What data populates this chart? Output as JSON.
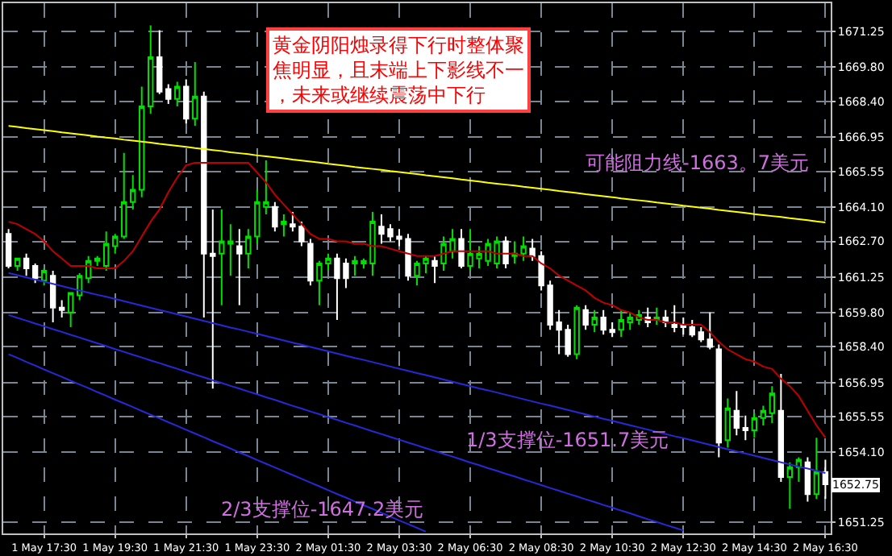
{
  "chart_data": {
    "type": "candlestick",
    "categories": [
      null,
      null,
      null,
      null,
      "1 May 17:30",
      null,
      null,
      null,
      null,
      null,
      null,
      null,
      "1 May 19:30",
      null,
      null,
      null,
      null,
      null,
      null,
      null,
      "1 May 21:30",
      null,
      null,
      null,
      null,
      null,
      null,
      null,
      "1 May 23:30",
      null,
      null,
      null,
      null,
      null,
      null,
      null,
      "2 May 01:30",
      null,
      null,
      null,
      null,
      null,
      null,
      null,
      "2 May 03:30",
      null,
      null,
      null,
      null,
      null,
      null,
      null,
      "2 May 06:30",
      null,
      null,
      null,
      null,
      null,
      null,
      null,
      "2 May 08:30",
      null,
      null,
      null,
      null,
      null,
      null,
      null,
      "2 May 10:30",
      null,
      null,
      null,
      null,
      null,
      null,
      null,
      "2 May 12:30",
      null,
      null,
      null,
      null,
      null,
      null,
      null,
      "2 May 14:30",
      null,
      null,
      null,
      null,
      null,
      null,
      null,
      "2 May 16:30"
    ],
    "ohlc": [
      [
        1663.0,
        1663.2,
        1661.6,
        1661.7
      ],
      [
        1661.7,
        1662.0,
        1661.5,
        1662.0
      ],
      [
        1662.0,
        1662.2,
        1661.3,
        1661.6
      ],
      [
        1661.7,
        1661.8,
        1661.0,
        1661.2
      ],
      [
        1661.1,
        1661.6,
        1660.9,
        1661.5
      ],
      [
        1661.3,
        1661.5,
        1659.4,
        1660.0
      ],
      [
        1660.0,
        1660.3,
        1659.6,
        1659.9
      ],
      [
        1659.8,
        1660.6,
        1659.2,
        1660.6
      ],
      [
        1660.5,
        1661.4,
        1660.3,
        1661.3
      ],
      [
        1661.2,
        1662.1,
        1661.0,
        1661.9
      ],
      [
        1661.9,
        1662.1,
        1661.7,
        1662.0
      ],
      [
        1661.7,
        1663.1,
        1661.5,
        1662.6
      ],
      [
        1662.5,
        1663.0,
        1662.2,
        1662.9
      ],
      [
        1662.9,
        1666.3,
        1662.8,
        1664.3
      ],
      [
        1664.3,
        1665.4,
        1664.0,
        1664.8
      ],
      [
        1664.8,
        1669.0,
        1664.5,
        1668.2
      ],
      [
        1668.2,
        1671.5,
        1667.9,
        1670.2
      ],
      [
        1670.2,
        1671.3,
        1668.7,
        1668.8
      ],
      [
        1668.9,
        1669.1,
        1668.3,
        1668.5
      ],
      [
        1668.5,
        1669.2,
        1668.2,
        1669.0
      ],
      [
        1669.0,
        1669.3,
        1667.5,
        1667.7
      ],
      [
        1667.7,
        1670.0,
        1667.4,
        1668.6
      ],
      [
        1668.6,
        1668.8,
        1659.6,
        1662.2
      ],
      [
        1662.2,
        1664.0,
        1656.7,
        1662.1
      ],
      [
        1662.2,
        1664.0,
        1660.1,
        1662.7
      ],
      [
        1662.6,
        1663.4,
        1661.3,
        1662.7
      ],
      [
        1662.5,
        1663.2,
        1660.1,
        1662.2
      ],
      [
        1662.2,
        1663.2,
        1661.6,
        1662.9
      ],
      [
        1662.9,
        1664.8,
        1662.6,
        1664.3
      ],
      [
        1664.1,
        1666.0,
        1663.8,
        1664.3
      ],
      [
        1664.1,
        1664.3,
        1663.1,
        1663.3
      ],
      [
        1663.4,
        1663.8,
        1662.9,
        1663.5
      ],
      [
        1663.4,
        1663.9,
        1663.1,
        1663.3
      ],
      [
        1663.3,
        1663.5,
        1662.5,
        1662.7
      ],
      [
        1662.6,
        1662.8,
        1660.9,
        1661.1
      ],
      [
        1661.1,
        1661.9,
        1660.1,
        1661.8
      ],
      [
        1661.8,
        1662.2,
        1661.5,
        1662.0
      ],
      [
        1662.0,
        1662.2,
        1659.5,
        1661.2
      ],
      [
        1661.8,
        1662.0,
        1660.8,
        1661.2
      ],
      [
        1661.8,
        1662.1,
        1661.3,
        1661.9
      ],
      [
        1661.8,
        1662.0,
        1661.6,
        1661.9
      ],
      [
        1661.8,
        1663.9,
        1661.3,
        1663.5
      ],
      [
        1663.3,
        1663.8,
        1662.6,
        1663.0
      ],
      [
        1663.2,
        1663.4,
        1662.7,
        1662.9
      ],
      [
        1662.9,
        1663.2,
        1662.5,
        1662.8
      ],
      [
        1662.8,
        1663.0,
        1661.1,
        1661.3
      ],
      [
        1661.3,
        1661.9,
        1660.9,
        1661.8
      ],
      [
        1661.8,
        1662.1,
        1661.4,
        1662.0
      ],
      [
        1661.9,
        1662.1,
        1661.0,
        1661.7
      ],
      [
        1661.8,
        1662.9,
        1661.5,
        1662.6
      ],
      [
        1662.3,
        1663.2,
        1662.0,
        1662.8
      ],
      [
        1662.8,
        1663.2,
        1661.6,
        1661.7
      ],
      [
        1661.7,
        1663.2,
        1661.5,
        1662.2
      ],
      [
        1662.0,
        1662.5,
        1661.6,
        1662.2
      ],
      [
        1661.9,
        1662.8,
        1661.7,
        1662.6
      ],
      [
        1661.8,
        1662.9,
        1661.6,
        1662.7
      ],
      [
        1662.7,
        1662.9,
        1661.6,
        1661.8
      ],
      [
        1662.1,
        1662.7,
        1661.8,
        1662.2
      ],
      [
        1662.2,
        1662.9,
        1661.9,
        1662.5
      ],
      [
        1662.4,
        1662.8,
        1661.9,
        1662.1
      ],
      [
        1662.1,
        1662.3,
        1660.7,
        1660.9
      ],
      [
        1660.9,
        1661.1,
        1659.1,
        1659.3
      ],
      [
        1659.4,
        1659.9,
        1658.1,
        1659.1
      ],
      [
        1659.1,
        1659.3,
        1658.0,
        1658.1
      ],
      [
        1658.1,
        1660.1,
        1657.9,
        1660.0
      ],
      [
        1659.9,
        1660.1,
        1659.1,
        1659.3
      ],
      [
        1659.3,
        1659.9,
        1659.0,
        1659.6
      ],
      [
        1659.6,
        1659.9,
        1658.9,
        1659.1
      ],
      [
        1659.1,
        1659.4,
        1658.8,
        1659.0
      ],
      [
        1659.1,
        1659.9,
        1658.8,
        1659.5
      ],
      [
        1659.4,
        1659.8,
        1659.1,
        1659.6
      ],
      [
        1659.5,
        1659.9,
        1659.3,
        1659.7
      ],
      [
        1659.6,
        1660.0,
        1659.2,
        1659.4
      ],
      [
        1659.5,
        1660.0,
        1659.3,
        1659.6
      ],
      [
        1659.6,
        1659.9,
        1659.2,
        1659.4
      ],
      [
        1659.3,
        1660.1,
        1659.0,
        1659.2
      ],
      [
        1659.3,
        1659.6,
        1658.9,
        1659.2
      ],
      [
        1659.2,
        1659.5,
        1658.8,
        1658.9
      ],
      [
        1659.0,
        1659.2,
        1658.6,
        1658.7
      ],
      [
        1658.7,
        1659.8,
        1658.3,
        1658.4
      ],
      [
        1658.3,
        1658.5,
        1653.9,
        1654.5
      ],
      [
        1654.6,
        1656.3,
        1654.3,
        1655.9
      ],
      [
        1655.8,
        1656.6,
        1654.8,
        1655.1
      ],
      [
        1655.1,
        1655.6,
        1654.6,
        1655.0
      ],
      [
        1655.0,
        1655.7,
        1654.7,
        1655.5
      ],
      [
        1655.5,
        1656.0,
        1655.2,
        1655.8
      ],
      [
        1655.7,
        1656.8,
        1655.3,
        1656.5
      ],
      [
        1655.8,
        1657.3,
        1652.9,
        1653.1
      ],
      [
        1653.1,
        1653.7,
        1651.8,
        1653.5
      ],
      [
        1653.5,
        1653.9,
        1652.9,
        1653.8
      ],
      [
        1653.7,
        1653.9,
        1652.1,
        1652.4
      ],
      [
        1652.4,
        1654.7,
        1652.2,
        1653.3
      ],
      [
        1653.3,
        1653.8,
        1652.2,
        1652.8
      ]
    ],
    "colors": [
      "#ffffff",
      "#00e000",
      "#ffffff",
      "#ffffff",
      "#00e000",
      "#ffffff",
      "#ffffff",
      "#00e000",
      "#00e000",
      "#00e000",
      "#00e000",
      "#00e000",
      "#00e000",
      "#00e000",
      "#00e000",
      "#00e000",
      "#00e000",
      "#ffffff",
      "#ffffff",
      "#00e000",
      "#ffffff",
      "#00e000",
      "#ffffff",
      "#ffffff",
      "#00e000",
      "#00e000",
      "#ffffff",
      "#00e000",
      "#00e000",
      "#00e000",
      "#ffffff",
      "#00e000",
      "#ffffff",
      "#ffffff",
      "#ffffff",
      "#00e000",
      "#00e000",
      "#ffffff",
      "#ffffff",
      "#00e000",
      "#00e000",
      "#00e000",
      "#ffffff",
      "#ffffff",
      "#ffffff",
      "#ffffff",
      "#00e000",
      "#00e000",
      "#ffffff",
      "#00e000",
      "#00e000",
      "#ffffff",
      "#00e000",
      "#00e000",
      "#00e000",
      "#00e000",
      "#ffffff",
      "#00e000",
      "#00e000",
      "#ffffff",
      "#ffffff",
      "#ffffff",
      "#ffffff",
      "#ffffff",
      "#00e000",
      "#ffffff",
      "#00e000",
      "#ffffff",
      "#ffffff",
      "#00e000",
      "#00e000",
      "#00e000",
      "#ffffff",
      "#00e000",
      "#ffffff",
      "#ffffff",
      "#ffffff",
      "#ffffff",
      "#ffffff",
      "#ffffff",
      "#ffffff",
      "#00e000",
      "#ffffff",
      "#ffffff",
      "#00e000",
      "#00e000",
      "#00e000",
      "#ffffff",
      "#00e000",
      "#00e000",
      "#ffffff",
      "#00e000",
      "#ffffff"
    ],
    "series": [
      {
        "type": "line",
        "color": "#ffff00",
        "values": [
          1667.4,
          1667.36,
          1667.31,
          1667.27,
          1667.23,
          1667.19,
          1667.14,
          1667.1,
          1667.06,
          1667.02,
          1666.97,
          1666.93,
          1666.89,
          1666.84,
          1666.8,
          1666.76,
          1666.72,
          1666.67,
          1666.63,
          1666.59,
          1666.55,
          1666.5,
          1666.46,
          1666.42,
          1666.38,
          1666.33,
          1666.29,
          1666.25,
          1666.2,
          1666.16,
          1666.12,
          1666.08,
          1666.03,
          1665.99,
          1665.95,
          1665.91,
          1665.86,
          1665.82,
          1665.78,
          1665.73,
          1665.69,
          1665.65,
          1665.61,
          1665.56,
          1665.52,
          1665.48,
          1665.44,
          1665.39,
          1665.35,
          1665.31,
          1665.27,
          1665.22,
          1665.18,
          1665.14,
          1665.09,
          1665.05,
          1665.01,
          1664.97,
          1664.92,
          1664.88,
          1664.84,
          1664.8,
          1664.75,
          1664.71,
          1664.67,
          1664.62,
          1664.58,
          1664.54,
          1664.5,
          1664.45,
          1664.41,
          1664.37,
          1664.33,
          1664.28,
          1664.24,
          1664.2,
          1664.15,
          1664.11,
          1664.07,
          1664.03,
          1663.98,
          1663.94,
          1663.9,
          1663.86,
          1663.81,
          1663.77,
          1663.73,
          1663.69,
          1663.64,
          1663.6,
          1663.56,
          1663.51,
          1663.47
        ]
      },
      {
        "type": "line",
        "color": "#c00000",
        "values": [
          1663.5,
          1663.4,
          1663.2,
          1663.0,
          1662.7,
          1662.3,
          1662.0,
          1661.7,
          1661.7,
          1661.7,
          1661.6,
          1661.6,
          1661.6,
          1661.9,
          1662.3,
          1662.9,
          1663.5,
          1664.0,
          1664.7,
          1665.3,
          1665.8,
          1665.9,
          1665.9,
          1665.9,
          1665.9,
          1665.9,
          1665.9,
          1665.9,
          1665.5,
          1665.1,
          1664.6,
          1664.2,
          1663.8,
          1663.4,
          1663.0,
          1662.8,
          1662.8,
          1662.7,
          1662.7,
          1662.6,
          1662.6,
          1662.5,
          1662.5,
          1662.4,
          1662.3,
          1662.2,
          1662.1,
          1662.1,
          1662.1,
          1662.2,
          1662.3,
          1662.3,
          1662.3,
          1662.3,
          1662.3,
          1662.2,
          1662.2,
          1662.2,
          1662.1,
          1662.1,
          1661.8,
          1661.6,
          1661.3,
          1661.1,
          1660.9,
          1660.7,
          1660.4,
          1660.2,
          1660.1,
          1659.9,
          1659.8,
          1659.6,
          1659.5,
          1659.5,
          1659.4,
          1659.4,
          1659.3,
          1659.3,
          1659.3,
          1659.0,
          1658.6,
          1658.3,
          1658.1,
          1657.9,
          1657.8,
          1657.6,
          1657.5,
          1657.1,
          1656.8,
          1656.4,
          1655.8,
          1655.2,
          1654.7
        ]
      },
      {
        "type": "line",
        "color": "#2828d8",
        "values": [
          1661.41,
          1661.32,
          1661.23,
          1661.14,
          1661.06,
          1660.97,
          1660.88,
          1660.79,
          1660.7,
          1660.61,
          1660.52,
          1660.44,
          1660.35,
          1660.26,
          1660.17,
          1660.08,
          1659.99,
          1659.9,
          1659.82,
          1659.73,
          1659.64,
          1659.55,
          1659.46,
          1659.37,
          1659.28,
          1659.19,
          1659.11,
          1659.02,
          1658.93,
          1658.84,
          1658.75,
          1658.66,
          1658.57,
          1658.49,
          1658.4,
          1658.31,
          1658.22,
          1658.13,
          1658.04,
          1657.95,
          1657.87,
          1657.78,
          1657.69,
          1657.6,
          1657.51,
          1657.42,
          1657.33,
          1657.25,
          1657.16,
          1657.07,
          1656.98,
          1656.89,
          1656.8,
          1656.71,
          1656.63,
          1656.54,
          1656.45,
          1656.36,
          1656.27,
          1656.18,
          1656.09,
          1656.01,
          1655.92,
          1655.83,
          1655.74,
          1655.65,
          1655.56,
          1655.47,
          1655.39,
          1655.3,
          1655.21,
          1655.12,
          1655.03,
          1654.94,
          1654.85,
          1654.76,
          1654.68,
          1654.59,
          1654.5,
          1654.41,
          1654.32,
          1654.23,
          1654.14,
          1654.06,
          1653.97,
          1653.88,
          1653.79,
          1653.7,
          1653.61,
          1653.52,
          1653.44,
          1653.35,
          1653.26
        ]
      },
      {
        "type": "line",
        "color": "#2828d8",
        "values": [
          1659.7,
          1659.58,
          1659.47,
          1659.35,
          1659.24,
          1659.12,
          1659.01,
          1658.89,
          1658.78,
          1658.66,
          1658.55,
          1658.43,
          1658.31,
          1658.2,
          1658.08,
          1657.97,
          1657.85,
          1657.74,
          1657.62,
          1657.51,
          1657.39,
          1657.27,
          1657.16,
          1657.04,
          1656.93,
          1656.81,
          1656.7,
          1656.58,
          1656.47,
          1656.35,
          1656.24,
          1656.12,
          1656.0,
          1655.89,
          1655.77,
          1655.66,
          1655.54,
          1655.43,
          1655.31,
          1655.2,
          1655.08,
          1654.96,
          1654.85,
          1654.73,
          1654.62,
          1654.5,
          1654.39,
          1654.27,
          1654.16,
          1654.04,
          1653.93,
          1653.81,
          1653.69,
          1653.58,
          1653.46,
          1653.35,
          1653.23,
          1653.12,
          1653.0,
          1652.89,
          1652.77,
          1652.65,
          1652.54,
          1652.42,
          1652.31,
          1652.19,
          1652.08,
          1651.96,
          1651.85,
          1651.73,
          1651.62,
          1651.5,
          1651.38,
          1651.27,
          1651.15,
          1651.04,
          1650.92,
          null,
          null,
          null,
          null,
          null,
          null,
          null,
          null,
          null,
          null,
          null,
          null,
          null,
          null,
          null,
          null
        ]
      },
      {
        "type": "line",
        "color": "#2828d8",
        "values": [
          1658.1,
          1657.95,
          1657.79,
          1657.64,
          1657.48,
          1657.33,
          1657.18,
          1657.02,
          1656.87,
          1656.72,
          1656.56,
          1656.41,
          1656.25,
          1656.1,
          1655.95,
          1655.79,
          1655.64,
          1655.49,
          1655.33,
          1655.18,
          1655.02,
          1654.87,
          1654.72,
          1654.56,
          1654.41,
          1654.26,
          1654.1,
          1653.95,
          1653.79,
          1653.64,
          1653.49,
          1653.33,
          1653.18,
          1653.03,
          1652.87,
          1652.72,
          1652.56,
          1652.41,
          1652.26,
          1652.1,
          1651.95,
          1651.8,
          1651.64,
          1651.49,
          1651.33,
          1651.18,
          1651.03,
          1650.87,
          null,
          null,
          null,
          null,
          null,
          null,
          null,
          null,
          null,
          null,
          null,
          null,
          null,
          null,
          null,
          null,
          null,
          null,
          null,
          null,
          null,
          null,
          null,
          null,
          null,
          null,
          null,
          null,
          null,
          null,
          null,
          null,
          null,
          null,
          null,
          null,
          null,
          null,
          null,
          null,
          null,
          null,
          null,
          null,
          null
        ]
      }
    ],
    "ylim": [
      1650.8,
      1672.4
    ],
    "yticks": [
      {
        "value": 1651.25,
        "label": "1651.25"
      },
      {
        "value": 1654.1,
        "label": "1654.10"
      },
      {
        "value": 1655.55,
        "label": "1655.55"
      },
      {
        "value": 1656.95,
        "label": "1656.95"
      },
      {
        "value": 1658.4,
        "label": "1658.40"
      },
      {
        "value": 1659.8,
        "label": "1659.80"
      },
      {
        "value": 1661.25,
        "label": "1661.25"
      },
      {
        "value": 1662.7,
        "label": "1662.70"
      },
      {
        "value": 1664.1,
        "label": "1664.10"
      },
      {
        "value": 1665.55,
        "label": "1665.55"
      },
      {
        "value": 1666.95,
        "label": "1666.95"
      },
      {
        "value": 1668.4,
        "label": "1668.40"
      },
      {
        "value": 1669.8,
        "label": "1669.80"
      },
      {
        "value": 1671.25,
        "label": "1671.25"
      }
    ],
    "grid": true,
    "annotations": [
      "黄金阴阳烛录得下行时整体聚焦明显，且末端上下影线不一，未来或继续震荡中下行",
      "可能阻力线-1663。7美元",
      "1/3支撑位-1651.7美元",
      "2/3支撑位-1647.2美元",
      {
        "text": "1652.75",
        "y": 1652.75
      }
    ]
  }
}
